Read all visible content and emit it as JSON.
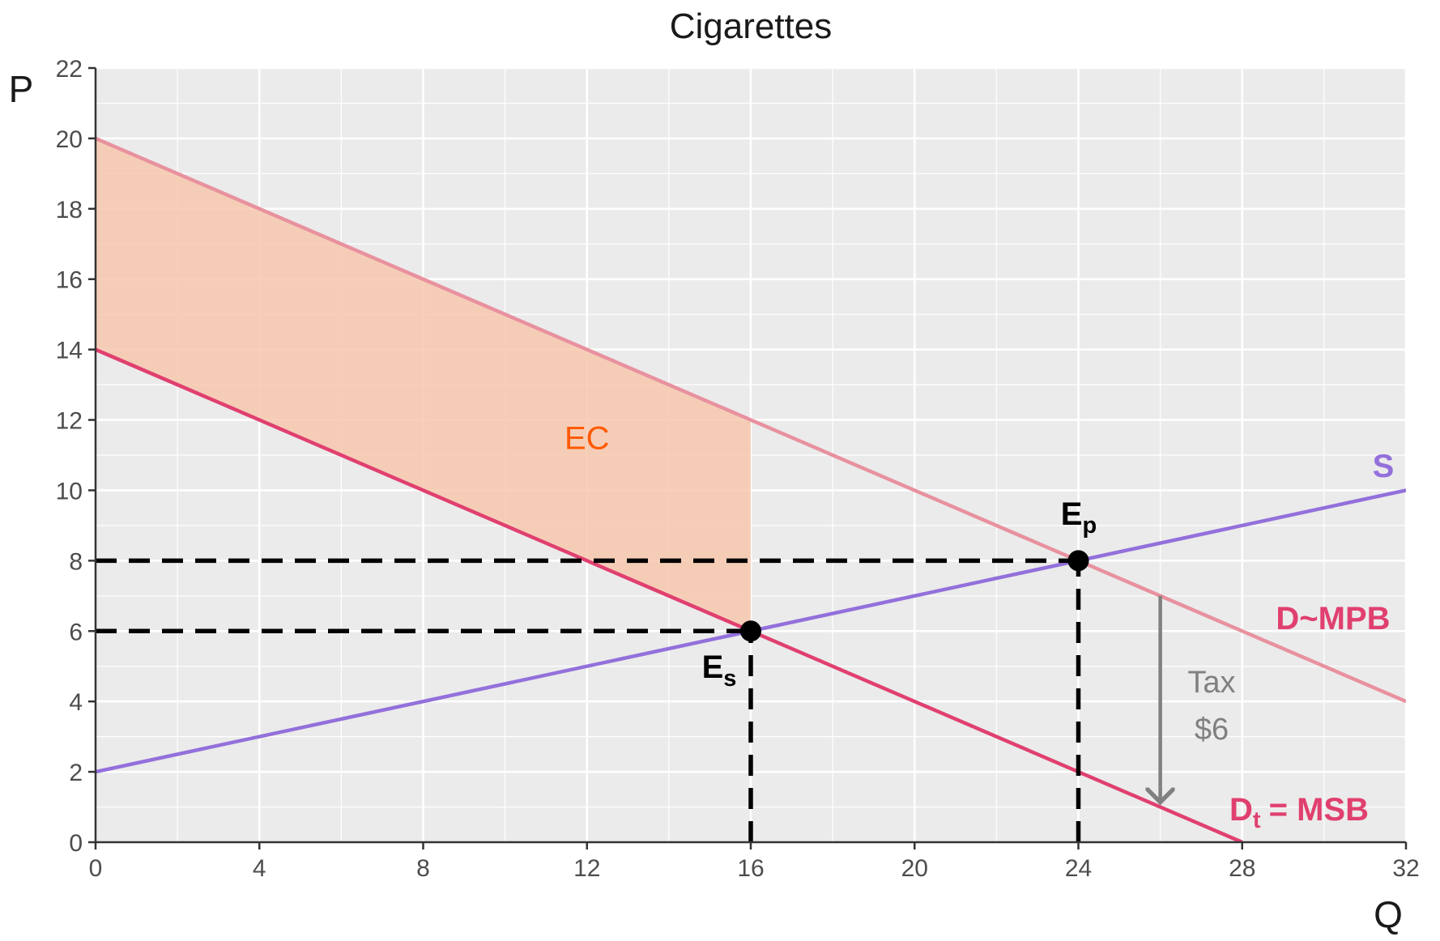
{
  "chart_data": {
    "type": "line",
    "title": "Cigarettes",
    "xlabel": "Q",
    "ylabel": "P",
    "xlim": [
      0,
      32
    ],
    "ylim": [
      0,
      22
    ],
    "x_ticks": [
      0,
      4,
      8,
      12,
      16,
      20,
      24,
      28,
      32
    ],
    "y_ticks": [
      0,
      2,
      4,
      6,
      8,
      10,
      12,
      14,
      16,
      18,
      20,
      22
    ],
    "grid": true,
    "series": [
      {
        "name": "S",
        "x": [
          0,
          32
        ],
        "y": [
          2,
          10
        ],
        "color": "#9370DB"
      },
      {
        "name": "D~MPB",
        "x": [
          0,
          32
        ],
        "y": [
          20,
          4
        ],
        "color": "#E8919F"
      },
      {
        "name": "Dt = MSB",
        "name_main": "D",
        "name_sub": "t",
        "name_rest": "= MSB",
        "x": [
          0,
          28
        ],
        "y": [
          14,
          0
        ],
        "color": "#E0406F"
      }
    ],
    "shaded_region": {
      "label": "EC",
      "label_color": "#FF5A00",
      "fill": "#F7C8AE",
      "x_from": 0,
      "x_to": 16,
      "label_x": 12,
      "label_y": 11.5
    },
    "points": [
      {
        "name": "Ep",
        "main": "E",
        "sub": "p",
        "x": 24,
        "y": 8
      },
      {
        "name": "Es",
        "main": "E",
        "sub": "s",
        "x": 16,
        "y": 6
      }
    ],
    "guides": [
      {
        "type": "h",
        "y": 8,
        "x_from": 0,
        "x_to": 24
      },
      {
        "type": "h",
        "y": 6,
        "x_from": 0,
        "x_to": 16
      },
      {
        "type": "v",
        "x": 24,
        "y_from": 0,
        "y_to": 8
      },
      {
        "type": "v",
        "x": 16,
        "y_from": 0,
        "y_to": 6
      }
    ],
    "annotations": [
      {
        "type": "arrow",
        "x": 26,
        "y_from": 7,
        "y_to": 1,
        "color": "#808080"
      },
      {
        "type": "text",
        "text": "Tax",
        "color": "#808080"
      },
      {
        "type": "text",
        "text": "$6",
        "color": "#808080"
      }
    ]
  }
}
